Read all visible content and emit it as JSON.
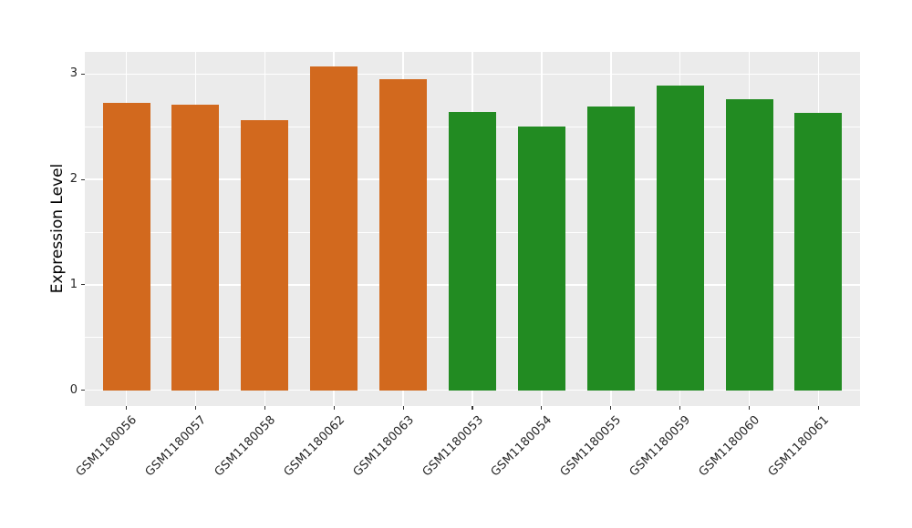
{
  "figure": {
    "background": "#FFFFFF",
    "panel_background": "#EBEBEB",
    "grid_color": "#FFFFFF",
    "axis_text_color": "#262626",
    "tick_mark_color": "#333333",
    "orange": "#D2691E",
    "green": "#228B22"
  },
  "chart_data": {
    "type": "bar",
    "title": "",
    "xlabel": "",
    "ylabel": "Expression Level",
    "categories": [
      "GSM1180056",
      "GSM1180057",
      "GSM1180058",
      "GSM1180062",
      "GSM1180063",
      "GSM1180053",
      "GSM1180054",
      "GSM1180055",
      "GSM1180059",
      "GSM1180060",
      "GSM1180061"
    ],
    "values": [
      2.73,
      2.71,
      2.56,
      3.07,
      2.95,
      2.64,
      2.5,
      2.69,
      2.89,
      2.76,
      2.63
    ],
    "bar_colors": [
      "#D2691E",
      "#D2691E",
      "#D2691E",
      "#D2691E",
      "#D2691E",
      "#228B22",
      "#228B22",
      "#228B22",
      "#228B22",
      "#228B22",
      "#228B22"
    ],
    "ylim": [
      -0.15,
      3.21
    ],
    "y_ticks": [
      0,
      1,
      2,
      3
    ],
    "y_minor_ticks": [
      0.5,
      1.5,
      2.5
    ],
    "x_tick_angle_deg": 45,
    "grid": "on",
    "legend": "none"
  }
}
